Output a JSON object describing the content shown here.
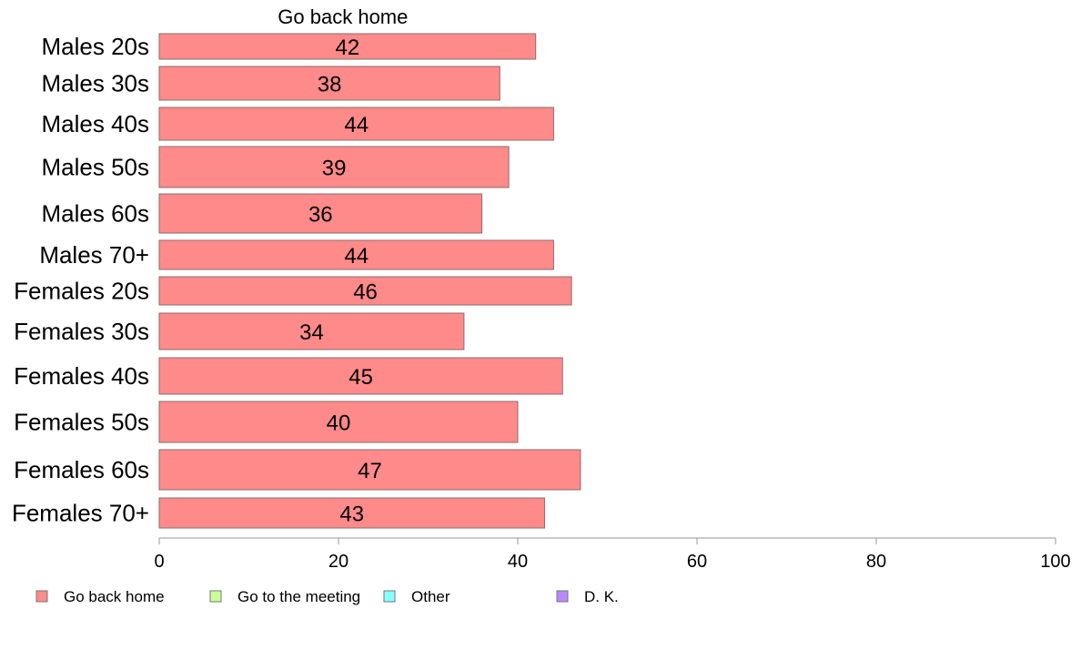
{
  "chart_data": {
    "type": "bar",
    "orientation": "horizontal",
    "stacked": true,
    "title": "Go back home",
    "categories": [
      "Males 20s",
      "Males 30s",
      "Males 40s",
      "Males 50s",
      "Males 60s",
      "Males 70+",
      "Females 20s",
      "Females 30s",
      "Females 40s",
      "Females 50s",
      "Females 60s",
      "Females 70+"
    ],
    "series": [
      {
        "name": "Go back home",
        "color": "#ff8a8a",
        "values": [
          42,
          38,
          44,
          39,
          36,
          44,
          46,
          34,
          45,
          40,
          47,
          43
        ]
      }
    ],
    "legend": [
      {
        "name": "Go back home",
        "color": "#ff8a8a"
      },
      {
        "name": "Go to the meeting",
        "color": "#ccff99"
      },
      {
        "name": "Other",
        "color": "#88ffff"
      },
      {
        "name": "D. K.",
        "color": "#bb88ff"
      }
    ],
    "legend_position": "bottom",
    "xlim": [
      0,
      100
    ],
    "xticks": [
      0,
      20,
      40,
      60,
      80,
      100
    ],
    "grid": false
  }
}
